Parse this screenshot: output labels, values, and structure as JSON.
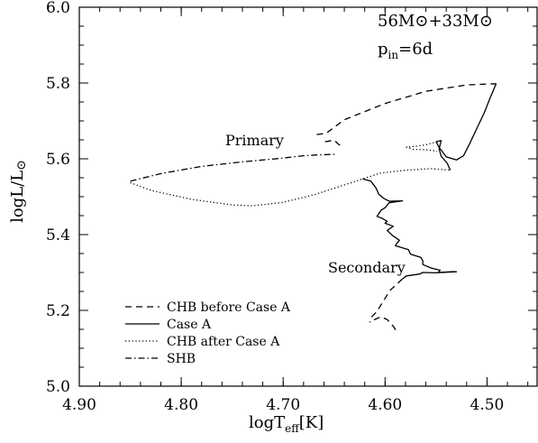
{
  "chart_data": {
    "type": "line",
    "xlabel": "logTeff[K]",
    "ylabel": "logL/L⊙",
    "xlim": [
      4.9,
      4.45
    ],
    "ylim": [
      5.0,
      6.0
    ],
    "x_reversed": true,
    "xticks": [
      "4.90",
      "4.80",
      "4.70",
      "4.60",
      "4.50"
    ],
    "xtick_values": [
      4.9,
      4.8,
      4.7,
      4.6,
      4.5
    ],
    "yticks": [
      "5.0",
      "5.2",
      "5.4",
      "5.6",
      "5.8",
      "6.0"
    ],
    "ytick_values": [
      5.0,
      5.2,
      5.4,
      5.6,
      5.8,
      6.0
    ],
    "grid": false,
    "legend_position": "bottom-left",
    "annotations": {
      "mass_line": "56M⊙+33M⊙",
      "period_line": "pin=6d",
      "primary": "Primary",
      "secondary": "Secondary"
    },
    "legend": [
      "CHB before Case A",
      "Case A",
      "CHB after Case A",
      "SHB"
    ],
    "series": [
      {
        "name": "CHB before Case A",
        "style": "dashed",
        "segments": [
          [
            [
              4.667,
              5.664
            ],
            [
              4.658,
              5.667
            ],
            [
              4.64,
              5.703
            ],
            [
              4.6,
              5.746
            ],
            [
              4.56,
              5.778
            ],
            [
              4.52,
              5.795
            ],
            [
              4.491,
              5.798
            ]
          ],
          [
            [
              4.659,
              5.645
            ],
            [
              4.65,
              5.649
            ],
            [
              4.645,
              5.637
            ],
            [
              4.643,
              5.635
            ]
          ],
          [
            [
              4.583,
              5.283
            ],
            [
              4.595,
              5.253
            ],
            [
              4.603,
              5.219
            ],
            [
              4.608,
              5.197
            ],
            [
              4.613,
              5.183
            ],
            [
              4.615,
              5.168
            ]
          ],
          [
            [
              4.611,
              5.175
            ],
            [
              4.604,
              5.183
            ],
            [
              4.598,
              5.176
            ],
            [
              4.592,
              5.158
            ],
            [
              4.59,
              5.15
            ],
            [
              4.589,
              5.138
            ]
          ]
        ]
      },
      {
        "name": "Case A",
        "style": "solid",
        "segments": [
          [
            [
              4.491,
              5.798
            ],
            [
              4.497,
              5.76
            ],
            [
              4.503,
              5.72
            ],
            [
              4.51,
              5.68
            ],
            [
              4.517,
              5.64
            ],
            [
              4.523,
              5.608
            ],
            [
              4.53,
              5.597
            ],
            [
              4.54,
              5.605
            ],
            [
              4.547,
              5.63
            ],
            [
              4.55,
              5.645
            ],
            [
              4.545,
              5.648
            ],
            [
              4.547,
              5.626
            ],
            [
              4.545,
              5.607
            ],
            [
              4.539,
              5.588
            ],
            [
              4.536,
              5.57
            ]
          ],
          [
            [
              4.622,
              5.547
            ],
            [
              4.614,
              5.541
            ],
            [
              4.609,
              5.523
            ],
            [
              4.606,
              5.506
            ],
            [
              4.601,
              5.495
            ],
            [
              4.596,
              5.488
            ],
            [
              4.583,
              5.489
            ],
            [
              4.596,
              5.484
            ],
            [
              4.6,
              5.471
            ],
            [
              4.604,
              5.464
            ],
            [
              4.608,
              5.448
            ],
            [
              4.603,
              5.443
            ],
            [
              4.598,
              5.435
            ],
            [
              4.6,
              5.43
            ],
            [
              4.592,
              5.422
            ],
            [
              4.598,
              5.411
            ],
            [
              4.593,
              5.398
            ],
            [
              4.586,
              5.385
            ],
            [
              4.59,
              5.371
            ],
            [
              4.577,
              5.36
            ],
            [
              4.575,
              5.348
            ],
            [
              4.565,
              5.34
            ],
            [
              4.563,
              5.331
            ],
            [
              4.563,
              5.321
            ],
            [
              4.555,
              5.312
            ],
            [
              4.546,
              5.306
            ],
            [
              4.548,
              5.3
            ],
            [
              4.535,
              5.302
            ],
            [
              4.53,
              5.302
            ],
            [
              4.551,
              5.299
            ],
            [
              4.563,
              5.3
            ],
            [
              4.566,
              5.296
            ],
            [
              4.579,
              5.291
            ],
            [
              4.583,
              5.283
            ]
          ]
        ]
      },
      {
        "name": "CHB after Case A",
        "style": "dotted",
        "segments": [
          [
            [
              4.85,
              5.537
            ],
            [
              4.83,
              5.517
            ],
            [
              4.79,
              5.493
            ],
            [
              4.75,
              5.478
            ],
            [
              4.73,
              5.476
            ],
            [
              4.7,
              5.485
            ],
            [
              4.67,
              5.505
            ],
            [
              4.64,
              5.531
            ],
            [
              4.622,
              5.547
            ],
            [
              4.605,
              5.562
            ],
            [
              4.58,
              5.57
            ],
            [
              4.555,
              5.574
            ],
            [
              4.536,
              5.57
            ]
          ],
          [
            [
              4.549,
              5.645
            ],
            [
              4.56,
              5.637
            ],
            [
              4.57,
              5.633
            ],
            [
              4.579,
              5.631
            ],
            [
              4.573,
              5.625
            ],
            [
              4.56,
              5.624
            ],
            [
              4.549,
              5.62
            ]
          ]
        ]
      },
      {
        "name": "SHB",
        "style": "dashdot",
        "segments": [
          [
            [
              4.85,
              5.541
            ],
            [
              4.82,
              5.561
            ],
            [
              4.78,
              5.58
            ],
            [
              4.74,
              5.592
            ],
            [
              4.7,
              5.602
            ],
            [
              4.68,
              5.608
            ],
            [
              4.668,
              5.61
            ],
            [
              4.65,
              5.612
            ],
            [
              4.647,
              5.612
            ]
          ]
        ]
      }
    ]
  }
}
